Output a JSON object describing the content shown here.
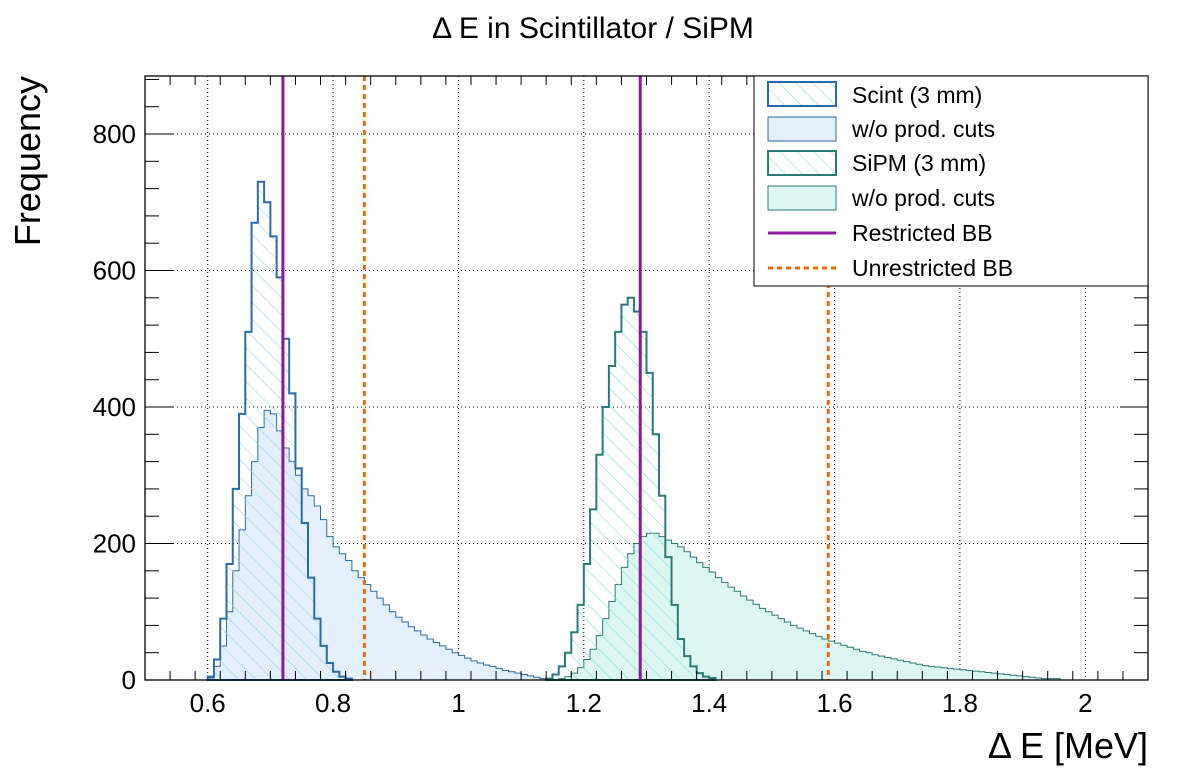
{
  "chart_data": {
    "type": "histogram",
    "title": "Δ E in Scintillator / SiPM",
    "xlabel": "Δ E [MeV]",
    "ylabel": "Frequency",
    "xlim": [
      0.5,
      2.1
    ],
    "ylim": [
      0,
      885
    ],
    "x_ticks": [
      {
        "v": 0.6,
        "label": "0.6"
      },
      {
        "v": 0.8,
        "label": "0.8"
      },
      {
        "v": 1.0,
        "label": "1"
      },
      {
        "v": 1.2,
        "label": "1.2"
      },
      {
        "v": 1.4,
        "label": "1.4"
      },
      {
        "v": 1.6,
        "label": "1.6"
      },
      {
        "v": 1.8,
        "label": "1.8"
      },
      {
        "v": 2.0,
        "label": "2"
      }
    ],
    "y_ticks": [
      {
        "v": 0,
        "label": "0"
      },
      {
        "v": 200,
        "label": "200"
      },
      {
        "v": 400,
        "label": "400"
      },
      {
        "v": 600,
        "label": "600"
      },
      {
        "v": 800,
        "label": "800"
      }
    ],
    "grid": true,
    "legend_position": "top-right",
    "bin_width": 0.01,
    "series": [
      {
        "name": "Scint (3 mm)",
        "style": "hatched",
        "line_color": "#2b6aa8",
        "fill_color": "#9fd0ee",
        "x_start": 0.6,
        "values": [
          5,
          30,
          90,
          170,
          280,
          390,
          510,
          670,
          730,
          700,
          650,
          590,
          500,
          420,
          310,
          230,
          150,
          90,
          50,
          25,
          12,
          5,
          2
        ]
      },
      {
        "name": "w/o prod. cuts",
        "style": "filled",
        "line_color": "#2b6aa8",
        "fill_color": "#e3f0fb",
        "x_start": 0.6,
        "values": [
          3,
          20,
          50,
          100,
          160,
          220,
          270,
          320,
          370,
          395,
          390,
          365,
          340,
          320,
          300,
          280,
          270,
          255,
          235,
          210,
          195,
          185,
          175,
          160,
          150,
          140,
          130,
          120,
          110,
          100,
          92,
          85,
          78,
          72,
          66,
          60,
          55,
          50,
          45,
          40,
          36,
          32,
          28,
          25,
          22,
          20,
          17,
          14,
          12,
          10,
          8,
          6,
          4,
          2
        ]
      },
      {
        "name": "SiPM (3 mm)",
        "style": "hatched",
        "line_color": "#2b7a7a",
        "fill_color": "#7fe0cf",
        "x_start": 1.14,
        "values": [
          2,
          8,
          20,
          40,
          70,
          110,
          170,
          250,
          330,
          400,
          460,
          510,
          550,
          560,
          540,
          510,
          450,
          360,
          270,
          180,
          110,
          60,
          35,
          20,
          10,
          5,
          3
        ]
      },
      {
        "name": "w/o prod. cuts",
        "style": "filled",
        "line_color": "#2b7a7a",
        "fill_color": "#dcf6f1",
        "x_start": 1.16,
        "values": [
          2,
          5,
          10,
          18,
          30,
          45,
          65,
          90,
          115,
          140,
          165,
          185,
          200,
          210,
          215,
          215,
          210,
          205,
          200,
          195,
          188,
          180,
          172,
          165,
          158,
          150,
          143,
          136,
          130,
          123,
          117,
          111,
          105,
          100,
          95,
          90,
          85,
          80,
          76,
          72,
          68,
          64,
          60,
          57,
          54,
          51,
          48,
          45,
          42,
          40,
          37,
          35,
          33,
          31,
          29,
          27,
          25,
          23,
          21,
          20,
          19,
          18,
          17,
          16,
          15,
          14,
          13,
          12,
          11,
          10,
          9,
          8,
          7,
          6,
          5,
          4,
          3,
          2,
          2,
          2
        ]
      }
    ],
    "lines": [
      {
        "name": "Restricted BB",
        "style": "solid",
        "color": "#8b1a9b",
        "x": [
          0.72,
          1.29
        ]
      },
      {
        "name": "Unrestricted BB",
        "style": "dashed",
        "color": "#f06a0a",
        "x": [
          0.85,
          1.59
        ]
      }
    ]
  }
}
